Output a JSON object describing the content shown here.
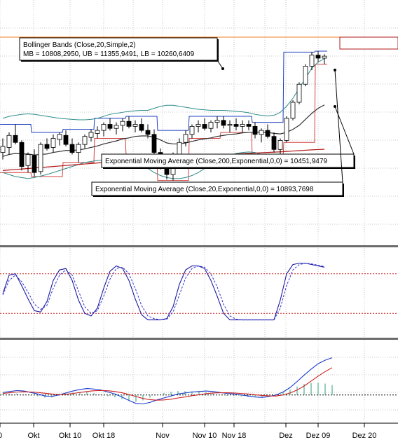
{
  "colors": {
    "background": "#ffffff",
    "grid": "#c8c8c8",
    "separator": "#6b6b6b",
    "candle_up": "#ffffff",
    "candle_down": "#000000",
    "bollinger": "#2e8b8b",
    "ema200": "#b01818",
    "ema20": "#303030",
    "highlow_box": "#d04040",
    "stoch_k": "#1a1aa0",
    "stoch_d": "#3030d0",
    "stoch_levels": "#cc2222",
    "macd": "#1a3ccc",
    "signal": "#cc2020",
    "histogram": "#2aa07a",
    "orange_line": "#f08020",
    "blue_step": "#2040c0"
  },
  "annotations": {
    "bollinger_title": "Bollinger Bands (Close,20,Simple,2)",
    "bollinger_values": "MB = 10808,2950, UB = 11355,9491, LB = 10260,6409",
    "ema200": "Exponential Moving Average (Close,200,Exponential,0,0) = 10451,9479",
    "ema20": "Exponential Moving Average (Close,20,Exponential,0,0) = 10893,7698"
  },
  "x_axis": {
    "ticks": [
      {
        "label": "0"
      },
      {
        "label": "Okt"
      },
      {
        "label": "Okt 10"
      },
      {
        "label": "Okt 18"
      },
      {
        "label": "Nov"
      },
      {
        "label": "Nov 10"
      },
      {
        "label": "Nov 18"
      },
      {
        "label": "Dez"
      },
      {
        "label": "Dez 09"
      },
      {
        "label": "Dez 20"
      }
    ]
  },
  "chart_data": [
    {
      "type": "candlestick",
      "panel": "price",
      "indicators": [
        "Bollinger Bands (Close,20,Simple,2)",
        "Exponential Moving Average (Close,200,Exponential,0,0)",
        "Exponential Moving Average (Close,20,Exponential,0,0)"
      ],
      "last_values": {
        "MB": 10808.295,
        "UB": 11355.9491,
        "LB": 10260.6409,
        "EMA200": 10451.9479,
        "EMA20": 10893.7698
      },
      "ylim": [
        9600,
        11800
      ],
      "candles": [
        [
          10420,
          10560,
          10350,
          10480
        ],
        [
          10470,
          10620,
          10400,
          10590
        ],
        [
          10590,
          10700,
          10500,
          10520
        ],
        [
          10520,
          10540,
          10240,
          10280
        ],
        [
          10290,
          10420,
          10220,
          10400
        ],
        [
          10390,
          10450,
          10180,
          10220
        ],
        [
          10230,
          10520,
          10200,
          10500
        ],
        [
          10500,
          10560,
          10440,
          10460
        ],
        [
          10470,
          10600,
          10420,
          10560
        ],
        [
          10550,
          10620,
          10490,
          10600
        ],
        [
          10590,
          10640,
          10480,
          10500
        ],
        [
          10500,
          10560,
          10400,
          10420
        ],
        [
          10420,
          10520,
          10320,
          10500
        ],
        [
          10500,
          10600,
          10460,
          10580
        ],
        [
          10570,
          10650,
          10530,
          10620
        ],
        [
          10610,
          10680,
          10560,
          10640
        ],
        [
          10640,
          10720,
          10580,
          10700
        ],
        [
          10700,
          10760,
          10640,
          10660
        ],
        [
          10660,
          10720,
          10600,
          10690
        ],
        [
          10690,
          10760,
          10630,
          10730
        ],
        [
          10730,
          10780,
          10660,
          10680
        ],
        [
          10680,
          10740,
          10620,
          10700
        ],
        [
          10700,
          10760,
          10620,
          10640
        ],
        [
          10640,
          10700,
          10560,
          10600
        ],
        [
          10600,
          10650,
          10380,
          10420
        ],
        [
          10420,
          10460,
          10250,
          10300
        ],
        [
          10300,
          10360,
          10150,
          10200
        ],
        [
          10200,
          10420,
          10140,
          10400
        ],
        [
          10400,
          10560,
          10360,
          10520
        ],
        [
          10520,
          10640,
          10480,
          10600
        ],
        [
          10600,
          10700,
          10560,
          10680
        ],
        [
          10680,
          10740,
          10620,
          10700
        ],
        [
          10700,
          10760,
          10640,
          10660
        ],
        [
          10660,
          10740,
          10620,
          10720
        ],
        [
          10720,
          10780,
          10660,
          10740
        ],
        [
          10740,
          10780,
          10660,
          10690
        ],
        [
          10690,
          10740,
          10620,
          10700
        ],
        [
          10700,
          10760,
          10640,
          10680
        ],
        [
          10680,
          10740,
          10620,
          10700
        ],
        [
          10700,
          10740,
          10640,
          10680
        ],
        [
          10680,
          10720,
          10560,
          10600
        ],
        [
          10600,
          10660,
          10520,
          10640
        ],
        [
          10640,
          10700,
          10560,
          10580
        ],
        [
          10580,
          10620,
          10420,
          10450
        ],
        [
          10450,
          10560,
          10360,
          10540
        ],
        [
          10540,
          10780,
          10520,
          10760
        ],
        [
          10760,
          10940,
          10740,
          10920
        ],
        [
          10920,
          11120,
          10900,
          11100
        ],
        [
          11100,
          11300,
          11080,
          11280
        ],
        [
          11280,
          11420,
          11240,
          11390
        ],
        [
          11390,
          11430,
          11320,
          11360
        ],
        [
          11360,
          11400,
          11300,
          11380
        ]
      ],
      "bollinger_upper": [
        10760,
        10780,
        10790,
        10800,
        10805,
        10800,
        10790,
        10780,
        10770,
        10760,
        10755,
        10750,
        10745,
        10745,
        10750,
        10760,
        10780,
        10800,
        10810,
        10820,
        10830,
        10835,
        10840,
        10840,
        10860,
        10880,
        10890,
        10890,
        10880,
        10870,
        10860,
        10850,
        10845,
        10840,
        10840,
        10840,
        10835,
        10830,
        10825,
        10815,
        10800,
        10790,
        10785,
        10790,
        10820,
        10880,
        10960,
        11060,
        11160,
        11260,
        11320,
        11356
      ],
      "bollinger_lower": [
        10220,
        10200,
        10180,
        10170,
        10160,
        10170,
        10185,
        10200,
        10220,
        10240,
        10260,
        10280,
        10300,
        10320,
        10330,
        10340,
        10345,
        10350,
        10350,
        10345,
        10340,
        10320,
        10290,
        10260,
        10220,
        10190,
        10170,
        10160,
        10160,
        10170,
        10190,
        10220,
        10260,
        10300,
        10340,
        10370,
        10390,
        10410,
        10420,
        10425,
        10420,
        10400,
        10380,
        10350,
        10320,
        10300,
        10290,
        10280,
        10270,
        10265,
        10262,
        10261
      ],
      "ema20": [
        10380,
        10400,
        10410,
        10405,
        10405,
        10395,
        10400,
        10405,
        10420,
        10430,
        10440,
        10440,
        10445,
        10455,
        10470,
        10485,
        10505,
        10520,
        10535,
        10555,
        10565,
        10580,
        10585,
        10585,
        10570,
        10545,
        10515,
        10505,
        10505,
        10515,
        10530,
        10545,
        10555,
        10565,
        10580,
        10590,
        10600,
        10605,
        10615,
        10620,
        10620,
        10625,
        10620,
        10610,
        10605,
        10620,
        10650,
        10690,
        10750,
        10810,
        10860,
        10894
      ],
      "ema200": [
        10240,
        10245,
        10250,
        10255,
        10260,
        10265,
        10270,
        10275,
        10280,
        10285,
        10290,
        10295,
        10300,
        10305,
        10310,
        10315,
        10320,
        10325,
        10330,
        10335,
        10340,
        10345,
        10350,
        10355,
        10358,
        10360,
        10362,
        10365,
        10368,
        10372,
        10376,
        10380,
        10384,
        10388,
        10392,
        10396,
        10400,
        10404,
        10408,
        10411,
        10414,
        10417,
        10420,
        10423,
        10426,
        10430,
        10434,
        10438,
        10442,
        10446,
        10449,
        10452
      ]
    },
    {
      "type": "line",
      "panel": "stochastic",
      "series": [
        {
          "values": [
            50,
            78,
            80,
            62,
            42,
            24,
            22,
            38,
            70,
            86,
            88,
            70,
            40,
            20,
            16,
            28,
            58,
            84,
            92,
            88,
            70,
            42,
            18,
            10,
            10,
            10,
            12,
            30,
            64,
            86,
            92,
            92,
            88,
            70,
            46,
            20,
            10,
            10,
            10,
            10,
            10,
            10,
            10,
            10,
            40,
            80,
            94,
            96,
            96,
            94,
            92,
            90
          ]
        },
        {
          "values": [
            48,
            70,
            78,
            68,
            52,
            34,
            26,
            32,
            58,
            78,
            86,
            78,
            54,
            30,
            20,
            24,
            46,
            72,
            88,
            90,
            80,
            58,
            32,
            16,
            12,
            10,
            11,
            22,
            48,
            74,
            88,
            92,
            90,
            80,
            60,
            34,
            16,
            11,
            10,
            10,
            10,
            10,
            10,
            10,
            28,
            62,
            86,
            94,
            96,
            95,
            93,
            91
          ]
        }
      ],
      "levels": [
        80,
        20
      ],
      "ylim": [
        0,
        100
      ]
    },
    {
      "type": "line+bar",
      "panel": "macd",
      "series": [
        {
          "values": [
            10,
            14,
            18,
            16,
            10,
            4,
            -4,
            -6,
            0,
            8,
            16,
            22,
            26,
            24,
            20,
            12,
            4,
            -8,
            -22,
            -34,
            -36,
            -30,
            -20,
            -12,
            -4,
            4,
            8,
            12,
            14,
            16,
            14,
            10,
            6,
            4,
            0,
            -4,
            -8,
            -10,
            -6,
            0,
            12,
            30,
            54,
            80,
            104,
            126,
            140,
            150
          ]
        },
        {
          "values": [
            6,
            9,
            12,
            13,
            12,
            10,
            7,
            4,
            2,
            3,
            6,
            10,
            14,
            17,
            18,
            17,
            14,
            9,
            2,
            -6,
            -14,
            -19,
            -21,
            -20,
            -17,
            -12,
            -8,
            -3,
            1,
            5,
            8,
            9,
            9,
            8,
            6,
            4,
            1,
            -2,
            -4,
            -4,
            0,
            8,
            20,
            36,
            56,
            76,
            94,
            110
          ]
        },
        {
          "values": [
            4,
            5,
            6,
            3,
            -2,
            -6,
            -11,
            -10,
            -2,
            5,
            10,
            12,
            12,
            7,
            2,
            -5,
            -10,
            -17,
            -24,
            -28,
            -22,
            -11,
            1,
            8,
            13,
            16,
            16,
            15,
            13,
            11,
            6,
            1,
            -3,
            -4,
            -6,
            -8,
            -9,
            -8,
            -2,
            4,
            12,
            22,
            34,
            44,
            48,
            50,
            46,
            40
          ]
        }
      ],
      "ylim": [
        -60,
        180
      ]
    }
  ]
}
